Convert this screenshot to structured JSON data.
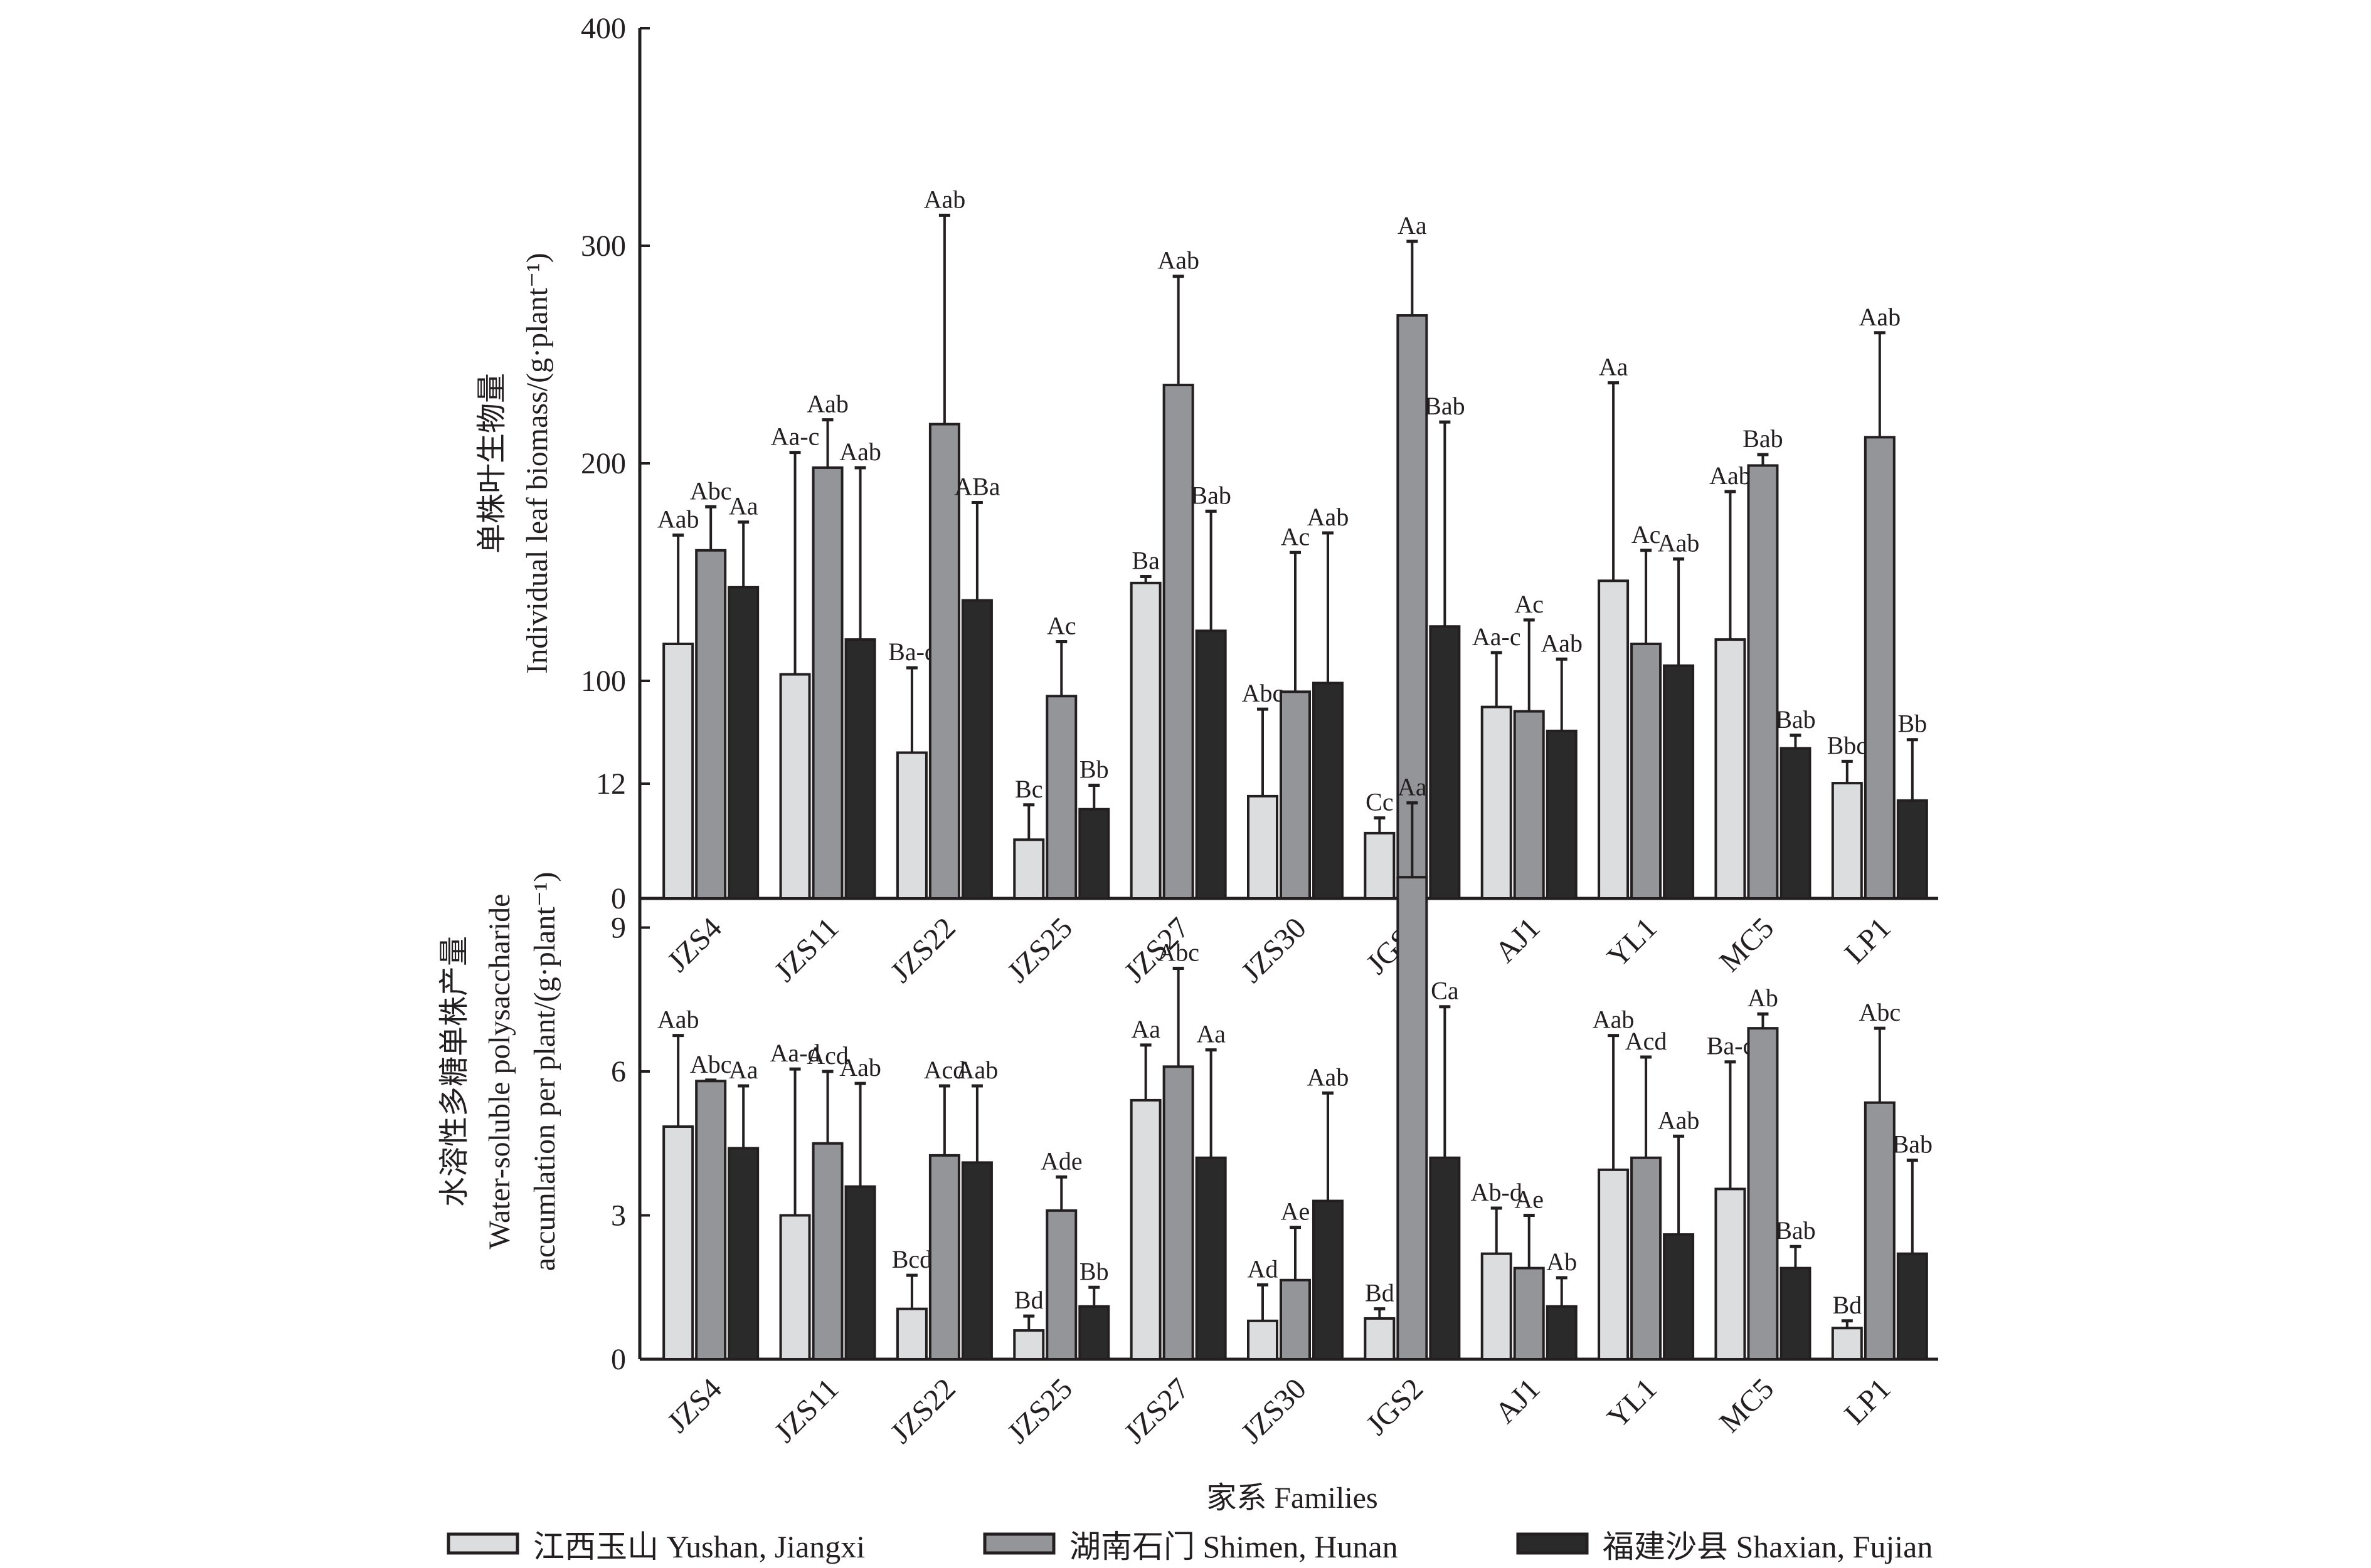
{
  "legend": [
    {
      "label": "江西玉山 Yushan, Jiangxi",
      "color": "#dcdddf"
    },
    {
      "label": "湖南石门 Shimen, Hunan",
      "color": "#939598"
    },
    {
      "label": "福建沙县 Shaxian, Fujian",
      "color": "#2b2a2b"
    }
  ],
  "xlabel": "家系 Families",
  "chart_data": [
    {
      "type": "bar",
      "title": "",
      "ylabel_cn": "单株叶生物量",
      "ylabel": "Individual leaf biomass/(g·plant⁻¹)",
      "ylim": [
        0,
        400
      ],
      "yticks": [
        0,
        100,
        200,
        300,
        400
      ],
      "categories": [
        "JZS4",
        "JZS11",
        "JZS22",
        "JZS25",
        "JZS27",
        "JZS30",
        "JGS2",
        "AJ1",
        "YL1",
        "MC5",
        "LP1"
      ],
      "series": [
        {
          "name": "江西玉山 Yushan, Jiangxi",
          "values": [
            117,
            103,
            67,
            27,
            145,
            47,
            30,
            88,
            146,
            119,
            53
          ],
          "error_upper": [
            167,
            205,
            106,
            43,
            148,
            87,
            37,
            113,
            237,
            187,
            63
          ],
          "labels": [
            "Aab",
            "Aa-c",
            "Ba-c",
            "Bc",
            "Ba",
            "Abc",
            "Cc",
            "Aa-c",
            "Aa",
            "Aab",
            "Bbc"
          ]
        },
        {
          "name": "湖南石门 Shimen, Hunan",
          "values": [
            160,
            198,
            218,
            93,
            236,
            95,
            268,
            86,
            117,
            199,
            212
          ],
          "error_upper": [
            180,
            220,
            314,
            118,
            286,
            159,
            302,
            128,
            160,
            204,
            260
          ],
          "labels": [
            "Abc",
            "Aab",
            "Aab",
            "Ac",
            "Aab",
            "Ac",
            "Aa",
            "Ac",
            "Ac",
            "Bab",
            "Aab"
          ]
        },
        {
          "name": "福建沙县 Shaxian, Fujian",
          "values": [
            143,
            119,
            137,
            41,
            123,
            99,
            125,
            77,
            107,
            69,
            45
          ],
          "error_upper": [
            173,
            198,
            182,
            52,
            178,
            168,
            219,
            110,
            156,
            75,
            73
          ],
          "labels": [
            "Aa",
            "Aab",
            "ABa",
            "Bb",
            "Bab",
            "Aab",
            "Bab",
            "Aab",
            "Aab",
            "Bab",
            "Bb"
          ]
        }
      ]
    },
    {
      "type": "bar",
      "title": "",
      "ylabel_cn": "水溶性多糖单株产量",
      "ylabel": "Water-soluble polysaccharide",
      "ylabel2": "accumlation per plant/(g·plant⁻¹)",
      "ylim": [
        0,
        12
      ],
      "yticks": [
        0,
        3,
        6,
        9,
        12
      ],
      "categories": [
        "JZS4",
        "JZS11",
        "JZS22",
        "JZS25",
        "JZS27",
        "JZS30",
        "JGS2",
        "AJ1",
        "YL1",
        "MC5",
        "LP1"
      ],
      "series": [
        {
          "name": "江西玉山 Yushan, Jiangxi",
          "values": [
            4.85,
            3.0,
            1.05,
            0.6,
            5.4,
            0.8,
            0.85,
            2.2,
            3.95,
            3.55,
            0.65
          ],
          "error_upper": [
            6.75,
            6.05,
            1.75,
            0.9,
            6.55,
            1.55,
            1.05,
            3.15,
            6.75,
            6.2,
            0.8
          ],
          "labels": [
            "Aab",
            "Aa-d",
            "Bcd",
            "Bd",
            "Aa",
            "Ad",
            "Bd",
            "Ab-d",
            "Aab",
            "Ba-c",
            "Bd"
          ]
        },
        {
          "name": "湖南石门 Shimen, Hunan",
          "values": [
            5.8,
            4.5,
            4.25,
            3.1,
            6.1,
            1.65,
            10.05,
            1.9,
            4.2,
            6.9,
            5.35
          ],
          "error_upper": [
            5.82,
            6.0,
            5.7,
            3.8,
            8.15,
            2.75,
            11.6,
            3.0,
            6.3,
            7.2,
            6.9
          ],
          "labels": [
            "Abc",
            "Acd",
            "Acd",
            "Ade",
            "Abc",
            "Ae",
            "Aa",
            "Ae",
            "Acd",
            "Ab",
            "Abc"
          ]
        },
        {
          "name": "福建沙县 Shaxian, Fujian",
          "values": [
            4.4,
            3.6,
            4.1,
            1.1,
            4.2,
            3.3,
            4.2,
            1.1,
            2.6,
            1.9,
            2.2
          ],
          "error_upper": [
            5.7,
            5.75,
            5.7,
            1.5,
            6.45,
            5.55,
            7.35,
            1.7,
            4.65,
            2.35,
            4.15
          ],
          "labels": [
            "Aa",
            "Aab",
            "Aab",
            "Bb",
            "Aa",
            "Aab",
            "Ca",
            "Ab",
            "Aab",
            "Bab",
            "Bab"
          ]
        }
      ]
    }
  ]
}
